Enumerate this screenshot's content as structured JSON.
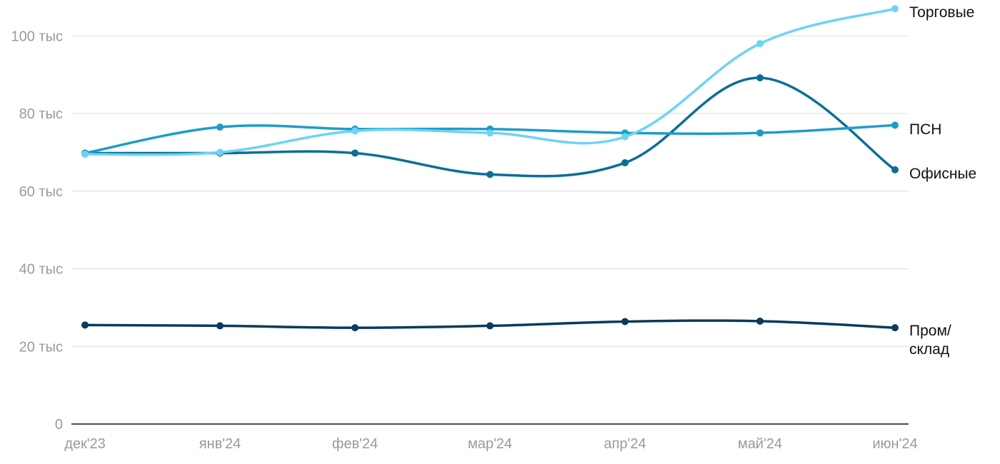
{
  "chart_data": {
    "type": "line",
    "title": "",
    "xlabel": "",
    "ylabel": "",
    "categories": [
      "дек'23",
      "янв'24",
      "фев'24",
      "мар'24",
      "апр'24",
      "май'24",
      "июн'24"
    ],
    "y_ticks": [
      {
        "value": 0,
        "label": "0"
      },
      {
        "value": 20000,
        "label": "20 тыс"
      },
      {
        "value": 40000,
        "label": "40 тыс"
      },
      {
        "value": 60000,
        "label": "60 тыс"
      },
      {
        "value": 80000,
        "label": "80 тыс"
      },
      {
        "value": 100000,
        "label": "100 тыс"
      }
    ],
    "ylim": [
      0,
      110000
    ],
    "grid": true,
    "legend": "labels at line ends (right)",
    "series": [
      {
        "name": "Торговые",
        "color": "#6dd3f5",
        "values": [
          69500,
          70000,
          75500,
          75000,
          74000,
          98000,
          107000
        ],
        "label_lines": [
          "Торговые"
        ]
      },
      {
        "name": "ПСН",
        "color": "#1e9cc8",
        "values": [
          69800,
          76500,
          76000,
          76000,
          75000,
          75000,
          77000
        ],
        "label_lines": [
          "ПСН"
        ]
      },
      {
        "name": "Офисные",
        "color": "#0a6f96",
        "values": [
          69800,
          69800,
          69800,
          64300,
          67300,
          89200,
          65500
        ],
        "label_lines": [
          "Офисные"
        ]
      },
      {
        "name": "Пром/склад",
        "color": "#0a3a5c",
        "values": [
          25500,
          25300,
          24800,
          25300,
          26400,
          26500,
          24800
        ],
        "label_lines": [
          "Пром/",
          "склад"
        ]
      }
    ]
  }
}
